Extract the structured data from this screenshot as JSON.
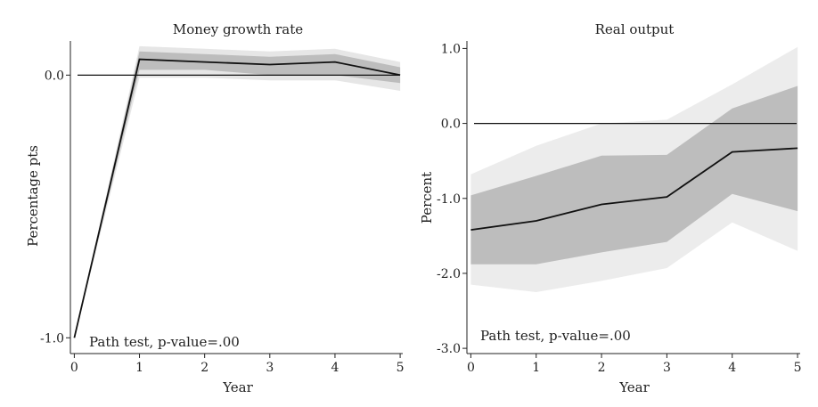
{
  "chart_data": [
    {
      "type": "line",
      "title": "Money growth rate",
      "xlabel": "Year",
      "ylabel": "Percentage pts",
      "annotation": "Path test, p-value=.00",
      "x": [
        0,
        1,
        2,
        3,
        4,
        5
      ],
      "xticks": [
        "0",
        "1",
        "2",
        "3",
        "4",
        "5"
      ],
      "yticks": [
        {
          "value": 0.0,
          "label": "0.0"
        },
        {
          "value": -1.0,
          "label": "-1.0"
        }
      ],
      "xlim": [
        -0.06,
        5.04
      ],
      "ylim": [
        -1.06,
        0.13
      ],
      "zero_line": 0.0,
      "series": [
        {
          "values": [
            -1.0,
            0.06,
            0.05,
            0.04,
            0.05,
            0.0
          ],
          "inner_band": {
            "lower": [
              -1.0,
              0.02,
              0.02,
              0.0,
              0.0,
              -0.03
            ],
            "upper": [
              -1.0,
              0.09,
              0.08,
              0.07,
              0.08,
              0.03
            ]
          },
          "outer_band": {
            "lower": [
              -1.0,
              -0.01,
              -0.01,
              -0.02,
              -0.02,
              -0.06
            ],
            "upper": [
              -1.0,
              0.11,
              0.1,
              0.09,
              0.1,
              0.05
            ]
          }
        }
      ],
      "colors": {
        "line": "#111111",
        "inner": "#bdbdbd",
        "outer": "#e6e6e6"
      }
    },
    {
      "type": "line",
      "title": "Real output",
      "xlabel": "Year",
      "ylabel": "Percent",
      "annotation": "Path test, p-value=.00",
      "x": [
        0,
        1,
        2,
        3,
        4,
        5
      ],
      "xticks": [
        "0",
        "1",
        "2",
        "3",
        "4",
        "5"
      ],
      "yticks": [
        {
          "value": 1.0,
          "label": "1.0"
        },
        {
          "value": 0.0,
          "label": "0.0"
        },
        {
          "value": -1.0,
          "label": "-1.0"
        },
        {
          "value": -2.0,
          "label": "-2.0"
        },
        {
          "value": -3.0,
          "label": "-3.0"
        }
      ],
      "xlim": [
        -0.06,
        5.04
      ],
      "ylim": [
        -3.07,
        1.1
      ],
      "zero_line": 0.0,
      "series": [
        {
          "values": [
            -1.42,
            -1.3,
            -1.08,
            -0.98,
            -0.38,
            -0.33
          ],
          "inner_band": {
            "lower": [
              -1.88,
              -1.88,
              -1.72,
              -1.58,
              -0.94,
              -1.17
            ],
            "upper": [
              -0.96,
              -0.7,
              -0.43,
              -0.42,
              0.2,
              0.5
            ]
          },
          "outer_band": {
            "lower": [
              -2.15,
              -2.25,
              -2.1,
              -1.93,
              -1.32,
              -1.7
            ],
            "upper": [
              -0.68,
              -0.3,
              0.0,
              0.05,
              0.52,
              1.02
            ]
          }
        }
      ],
      "colors": {
        "line": "#111111",
        "inner": "#bdbdbd",
        "outer": "#ececec"
      }
    }
  ]
}
